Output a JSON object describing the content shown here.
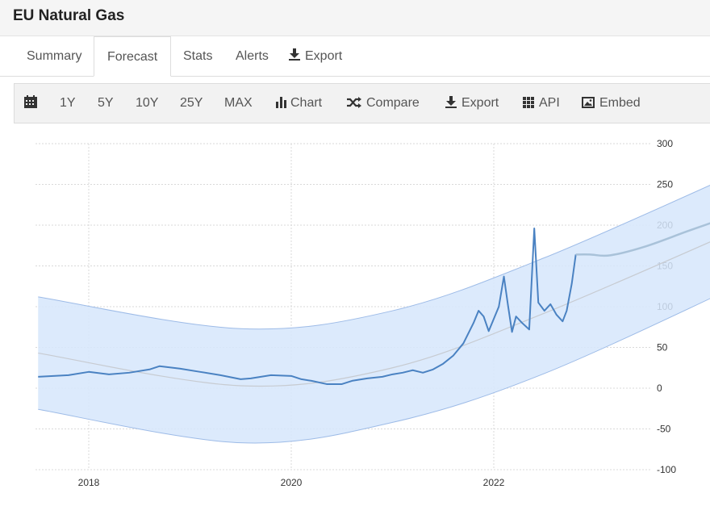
{
  "app": {
    "title": "EU Natural Gas"
  },
  "tabs": [
    {
      "label": "Summary",
      "active": false
    },
    {
      "label": "Forecast",
      "active": true
    },
    {
      "label": "Stats",
      "active": false
    },
    {
      "label": "Alerts",
      "active": false
    },
    {
      "label": "Export",
      "active": false,
      "icon": "download-icon"
    }
  ],
  "toolbar": {
    "calendar_icon": "calendar-icon",
    "ranges": [
      "1Y",
      "5Y",
      "10Y",
      "25Y",
      "MAX"
    ],
    "chart": "Chart",
    "compare": "Compare",
    "export": "Export",
    "api": "API",
    "embed": "Embed"
  },
  "colors": {
    "series": "#4a82c2",
    "forecast": "#a9c2d9",
    "band": "#d6e6fb",
    "band_edge": "#9dbbe7",
    "trend": "#c7cbd1"
  },
  "chart_data": {
    "type": "line",
    "x_ticks": [
      "2018",
      "2020",
      "2022"
    ],
    "y_ticks": [
      300,
      250,
      200,
      150,
      100,
      50,
      0,
      -50,
      -100
    ],
    "ylim": [
      -100,
      300
    ],
    "y_axis_side": "right",
    "grid": true,
    "series": [
      {
        "values": [
          [
            2017.5,
            14
          ],
          [
            2017.8,
            16
          ],
          [
            2018.0,
            20
          ],
          [
            2018.2,
            17
          ],
          [
            2018.4,
            19
          ],
          [
            2018.6,
            23
          ],
          [
            2018.7,
            27
          ],
          [
            2018.9,
            24
          ],
          [
            2019.1,
            20
          ],
          [
            2019.3,
            16
          ],
          [
            2019.5,
            11
          ],
          [
            2019.6,
            12
          ],
          [
            2019.8,
            16
          ],
          [
            2020.0,
            15
          ],
          [
            2020.1,
            11
          ],
          [
            2020.2,
            9
          ],
          [
            2020.35,
            5
          ],
          [
            2020.5,
            5
          ],
          [
            2020.6,
            9
          ],
          [
            2020.75,
            12
          ],
          [
            2020.9,
            14
          ],
          [
            2021.0,
            17
          ],
          [
            2021.1,
            19
          ],
          [
            2021.2,
            22
          ],
          [
            2021.3,
            19
          ],
          [
            2021.4,
            23
          ],
          [
            2021.5,
            30
          ],
          [
            2021.6,
            40
          ],
          [
            2021.7,
            55
          ],
          [
            2021.8,
            80
          ],
          [
            2021.85,
            95
          ],
          [
            2021.9,
            88
          ],
          [
            2021.95,
            70
          ],
          [
            2022.0,
            85
          ],
          [
            2022.05,
            100
          ],
          [
            2022.1,
            137
          ],
          [
            2022.14,
            102
          ],
          [
            2022.18,
            69
          ],
          [
            2022.22,
            88
          ],
          [
            2022.28,
            80
          ],
          [
            2022.35,
            72
          ],
          [
            2022.4,
            196
          ],
          [
            2022.44,
            105
          ],
          [
            2022.5,
            95
          ],
          [
            2022.56,
            103
          ],
          [
            2022.62,
            90
          ],
          [
            2022.68,
            82
          ],
          [
            2022.72,
            95
          ],
          [
            2022.77,
            128
          ],
          [
            2022.81,
            164
          ]
        ]
      },
      {
        "values": [
          [
            2022.81,
            164
          ],
          [
            2022.95,
            164
          ],
          [
            2023.15,
            163
          ],
          [
            2023.5,
            174
          ],
          [
            2023.9,
            192
          ],
          [
            2024.3,
            210
          ],
          [
            2024.55,
            226
          ]
        ]
      }
    ],
    "forecast_band": {
      "upper": [
        [
          2017.5,
          112
        ],
        [
          2019.5,
          73
        ],
        [
          2021.0,
          95
        ],
        [
          2022.5,
          160
        ],
        [
          2024.55,
          272
        ]
      ],
      "lower": [
        [
          2017.5,
          -26
        ],
        [
          2019.5,
          -67
        ],
        [
          2021.0,
          -42
        ],
        [
          2022.5,
          18
        ],
        [
          2024.55,
          134
        ]
      ]
    },
    "trend": [
      [
        2017.5,
        43
      ],
      [
        2019.5,
        3
      ],
      [
        2021.0,
        25
      ],
      [
        2022.5,
        92
      ],
      [
        2024.55,
        202
      ]
    ]
  }
}
